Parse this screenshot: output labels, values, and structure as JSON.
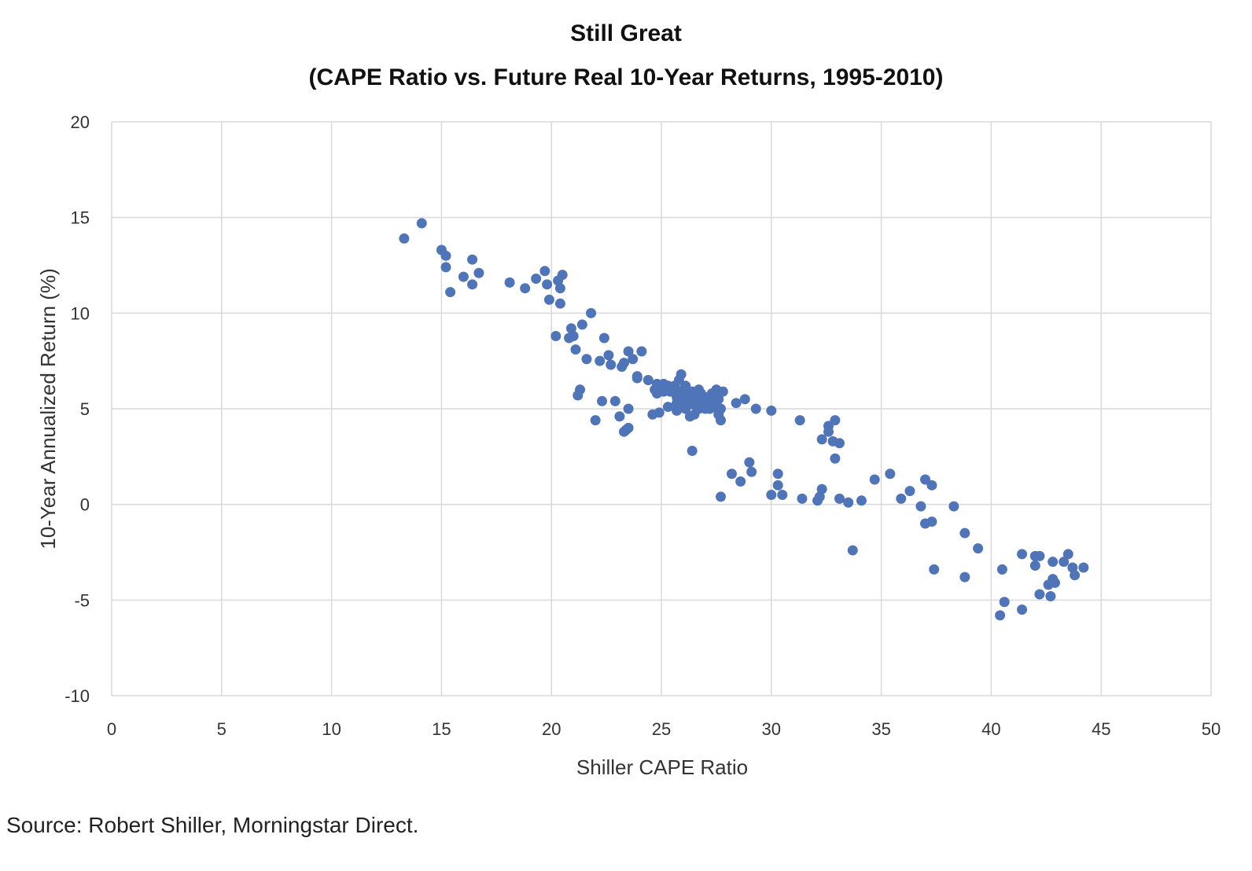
{
  "chart_data": {
    "type": "scatter",
    "title": "Still Great",
    "subtitle": "(CAPE Ratio vs. Future Real 10-Year Returns, 1995-2010)",
    "xlabel": "Shiller CAPE Ratio",
    "ylabel": "10-Year Annualized Return (%)",
    "xlim": [
      0,
      50
    ],
    "ylim": [
      -10,
      20
    ],
    "xticks": [
      0,
      5,
      10,
      15,
      20,
      25,
      30,
      35,
      40,
      45,
      50
    ],
    "yticks": [
      -10,
      -5,
      0,
      5,
      10,
      15,
      20
    ],
    "grid": true,
    "marker_color": "#4f74b8",
    "points": [
      [
        13.3,
        13.9
      ],
      [
        14.1,
        14.7
      ],
      [
        15.0,
        13.3
      ],
      [
        15.2,
        13.0
      ],
      [
        15.2,
        12.4
      ],
      [
        15.4,
        11.1
      ],
      [
        16.0,
        11.9
      ],
      [
        16.4,
        12.8
      ],
      [
        16.4,
        11.5
      ],
      [
        16.7,
        12.1
      ],
      [
        18.1,
        11.6
      ],
      [
        18.8,
        11.3
      ],
      [
        19.3,
        11.8
      ],
      [
        19.7,
        12.2
      ],
      [
        19.8,
        11.5
      ],
      [
        19.9,
        10.7
      ],
      [
        20.2,
        8.8
      ],
      [
        20.3,
        11.7
      ],
      [
        20.4,
        10.5
      ],
      [
        20.4,
        11.3
      ],
      [
        20.5,
        12.0
      ],
      [
        20.8,
        8.7
      ],
      [
        20.9,
        9.2
      ],
      [
        21.0,
        8.8
      ],
      [
        21.1,
        8.1
      ],
      [
        21.2,
        5.7
      ],
      [
        21.3,
        6.0
      ],
      [
        21.4,
        9.4
      ],
      [
        21.6,
        7.6
      ],
      [
        21.8,
        10.0
      ],
      [
        22.0,
        4.4
      ],
      [
        22.2,
        7.5
      ],
      [
        22.3,
        5.4
      ],
      [
        22.4,
        8.7
      ],
      [
        22.6,
        7.8
      ],
      [
        22.7,
        7.3
      ],
      [
        22.9,
        5.4
      ],
      [
        23.1,
        4.6
      ],
      [
        23.2,
        7.2
      ],
      [
        23.3,
        7.4
      ],
      [
        23.3,
        3.8
      ],
      [
        23.4,
        3.9
      ],
      [
        23.5,
        8.0
      ],
      [
        23.5,
        4.0
      ],
      [
        23.5,
        5.0
      ],
      [
        23.7,
        7.6
      ],
      [
        23.9,
        6.7
      ],
      [
        23.9,
        6.6
      ],
      [
        24.1,
        8.0
      ],
      [
        24.4,
        6.5
      ],
      [
        24.6,
        4.7
      ],
      [
        24.7,
        6.0
      ],
      [
        24.8,
        6.3
      ],
      [
        24.8,
        5.8
      ],
      [
        24.9,
        4.8
      ],
      [
        25.0,
        6.1
      ],
      [
        25.1,
        6.3
      ],
      [
        25.1,
        5.9
      ],
      [
        25.2,
        6.0
      ],
      [
        25.3,
        5.1
      ],
      [
        25.3,
        6.2
      ],
      [
        25.4,
        5.9
      ],
      [
        25.5,
        6.0
      ],
      [
        25.6,
        6.2
      ],
      [
        25.7,
        5.3
      ],
      [
        25.7,
        5.6
      ],
      [
        25.7,
        4.9
      ],
      [
        25.8,
        5.8
      ],
      [
        25.8,
        6.5
      ],
      [
        25.9,
        6.8
      ],
      [
        25.9,
        5.2
      ],
      [
        26.0,
        5.5
      ],
      [
        26.0,
        6.0
      ],
      [
        26.1,
        6.2
      ],
      [
        26.1,
        5.0
      ],
      [
        26.2,
        5.6
      ],
      [
        26.2,
        5.3
      ],
      [
        26.3,
        4.6
      ],
      [
        26.3,
        5.8
      ],
      [
        26.4,
        5.9
      ],
      [
        26.4,
        2.8
      ],
      [
        26.5,
        5.2
      ],
      [
        26.5,
        4.7
      ],
      [
        26.6,
        5.6
      ],
      [
        26.6,
        5.4
      ],
      [
        26.7,
        6.0
      ],
      [
        26.7,
        5.0
      ],
      [
        26.8,
        5.1
      ],
      [
        26.8,
        5.8
      ],
      [
        26.9,
        5.3
      ],
      [
        27.0,
        5.0
      ],
      [
        27.0,
        5.4
      ],
      [
        27.1,
        5.6
      ],
      [
        27.2,
        5.2
      ],
      [
        27.2,
        5.0
      ],
      [
        27.3,
        5.4
      ],
      [
        27.3,
        5.8
      ],
      [
        27.4,
        5.6
      ],
      [
        27.4,
        5.1
      ],
      [
        27.5,
        6.0
      ],
      [
        27.5,
        5.3
      ],
      [
        27.6,
        4.7
      ],
      [
        27.6,
        5.5
      ],
      [
        27.7,
        4.4
      ],
      [
        27.7,
        5.0
      ],
      [
        27.7,
        0.4
      ],
      [
        27.8,
        5.9
      ],
      [
        28.2,
        1.6
      ],
      [
        28.4,
        5.3
      ],
      [
        28.6,
        1.2
      ],
      [
        28.8,
        5.5
      ],
      [
        29.0,
        2.2
      ],
      [
        29.1,
        1.7
      ],
      [
        29.3,
        5.0
      ],
      [
        30.0,
        4.9
      ],
      [
        30.0,
        0.5
      ],
      [
        30.3,
        1.0
      ],
      [
        30.3,
        1.6
      ],
      [
        30.5,
        0.5
      ],
      [
        31.3,
        4.4
      ],
      [
        31.4,
        0.3
      ],
      [
        32.1,
        0.2
      ],
      [
        32.2,
        0.4
      ],
      [
        32.3,
        0.8
      ],
      [
        32.3,
        3.4
      ],
      [
        32.6,
        4.1
      ],
      [
        32.6,
        3.8
      ],
      [
        32.8,
        3.3
      ],
      [
        32.9,
        2.4
      ],
      [
        32.9,
        4.4
      ],
      [
        33.1,
        3.2
      ],
      [
        33.1,
        0.3
      ],
      [
        33.5,
        0.1
      ],
      [
        33.7,
        -2.4
      ],
      [
        34.1,
        0.2
      ],
      [
        34.7,
        1.3
      ],
      [
        35.4,
        1.6
      ],
      [
        35.9,
        0.3
      ],
      [
        36.3,
        0.7
      ],
      [
        36.8,
        -0.1
      ],
      [
        37.0,
        1.3
      ],
      [
        37.0,
        -1.0
      ],
      [
        37.3,
        1.0
      ],
      [
        37.3,
        -0.9
      ],
      [
        37.4,
        -3.4
      ],
      [
        38.3,
        -0.1
      ],
      [
        38.8,
        -1.5
      ],
      [
        38.8,
        -3.8
      ],
      [
        39.4,
        -2.3
      ],
      [
        40.4,
        -5.8
      ],
      [
        40.5,
        -3.4
      ],
      [
        40.6,
        -5.1
      ],
      [
        41.4,
        -2.6
      ],
      [
        41.4,
        -5.5
      ],
      [
        42.0,
        -2.7
      ],
      [
        42.0,
        -3.2
      ],
      [
        42.2,
        -2.7
      ],
      [
        42.2,
        -4.7
      ],
      [
        42.6,
        -4.2
      ],
      [
        42.7,
        -4.8
      ],
      [
        42.8,
        -3.0
      ],
      [
        42.8,
        -3.9
      ],
      [
        42.9,
        -4.1
      ],
      [
        43.3,
        -3.0
      ],
      [
        43.5,
        -2.6
      ],
      [
        43.7,
        -3.3
      ],
      [
        43.8,
        -3.7
      ],
      [
        44.2,
        -3.3
      ]
    ]
  },
  "source": "Source: Robert Shiller, Morningstar Direct."
}
